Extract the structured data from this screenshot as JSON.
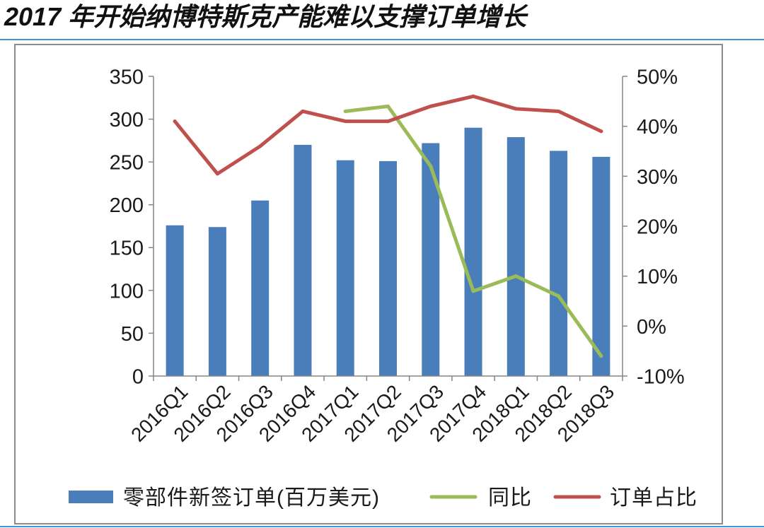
{
  "chart_data": {
    "type": "bar",
    "title": "2017 年开始纳博特斯克产能难以支撑订单增长",
    "xlabel": "",
    "ylabel": "",
    "categories": [
      "2016Q1",
      "2016Q2",
      "2016Q3",
      "2016Q4",
      "2017Q1",
      "2017Q2",
      "2017Q3",
      "2017Q4",
      "2018Q1",
      "2018Q2",
      "2018Q3"
    ],
    "series": [
      {
        "name": "零部件新签订单(百万美元)",
        "type": "bar",
        "axis": "left",
        "color": "#4A7EBB",
        "values": [
          176,
          174,
          205,
          270,
          252,
          251,
          272,
          290,
          279,
          263,
          256
        ]
      },
      {
        "name": "同比",
        "type": "line",
        "axis": "right",
        "unit": "%",
        "color": "#9BBB59",
        "values": [
          null,
          null,
          null,
          null,
          43,
          44,
          32,
          7,
          10,
          6,
          -6
        ]
      },
      {
        "name": "订单占比",
        "type": "line",
        "axis": "right",
        "unit": "%",
        "color": "#C0504D",
        "values": [
          41,
          30.5,
          36,
          43,
          41,
          41,
          44,
          46,
          43.5,
          43,
          39
        ]
      }
    ],
    "y_left": {
      "min": 0,
      "max": 350,
      "ticks": [
        0,
        50,
        100,
        150,
        200,
        250,
        300,
        350
      ],
      "tick_labels": [
        "0",
        "50",
        "100",
        "150",
        "200",
        "250",
        "300",
        "350"
      ]
    },
    "y_right": {
      "min": -10,
      "max": 50,
      "ticks": [
        -10,
        0,
        10,
        20,
        30,
        40,
        50
      ],
      "tick_labels": [
        "-10%",
        "0%",
        "10%",
        "20%",
        "30%",
        "40%",
        "50%"
      ]
    },
    "grid": false,
    "legend": "bottom"
  }
}
